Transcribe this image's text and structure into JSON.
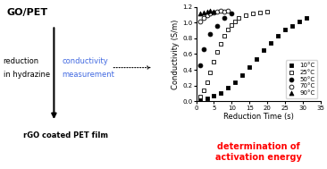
{
  "chart_data": {
    "type": "scatter",
    "xlabel": "Reduction Time (s)",
    "ylabel": "Conductivity (S/m)",
    "xlim": [
      0,
      35
    ],
    "xticks": [
      0,
      5,
      10,
      15,
      20,
      25,
      30,
      35
    ],
    "ylim": [
      0.0,
      1.2
    ],
    "yticks": [
      0.0,
      0.2,
      0.4,
      0.6,
      0.8,
      1.0,
      1.2
    ],
    "legend": "lower right",
    "series": [
      {
        "name": "10°C",
        "marker": "square",
        "color": "#000000",
        "x": [
          1,
          3,
          5,
          7,
          9,
          11,
          13,
          15,
          17,
          19,
          21,
          23,
          25,
          27,
          29,
          31
        ],
        "values": [
          0.02,
          0.04,
          0.07,
          0.11,
          0.17,
          0.24,
          0.33,
          0.43,
          0.54,
          0.65,
          0.74,
          0.83,
          0.91,
          0.96,
          1.01,
          1.06
        ]
      },
      {
        "name": "25°C",
        "marker": "square",
        "color": "#ffffff",
        "x": [
          1,
          2,
          3,
          4,
          5,
          6,
          7,
          8,
          9,
          10,
          11,
          12,
          14,
          16,
          18,
          20
        ],
        "values": [
          0.06,
          0.14,
          0.24,
          0.37,
          0.5,
          0.63,
          0.73,
          0.83,
          0.91,
          0.97,
          1.01,
          1.06,
          1.09,
          1.11,
          1.13,
          1.14
        ]
      },
      {
        "name": "50°C",
        "marker": "circle",
        "color": "#000000",
        "x": [
          1,
          2,
          4,
          6,
          8,
          10
        ],
        "values": [
          0.46,
          0.66,
          0.86,
          0.96,
          1.06,
          1.11
        ]
      },
      {
        "name": "70°C",
        "marker": "circle",
        "color": "#ffffff",
        "x": [
          1,
          2,
          3,
          4,
          5,
          6,
          7,
          8,
          9
        ],
        "values": [
          1.01,
          1.06,
          1.09,
          1.11,
          1.13,
          1.14,
          1.15,
          1.14,
          1.15
        ]
      },
      {
        "name": "90°C",
        "marker": "triangle",
        "color": "#000000",
        "x": [
          1,
          2,
          3,
          4,
          5
        ],
        "values": [
          1.11,
          1.13,
          1.14,
          1.15,
          1.14
        ]
      }
    ],
    "annotations": [
      {
        "text": "GO/PET"
      },
      {
        "text": "reduction"
      },
      {
        "text": "in hydrazine"
      },
      {
        "text": "conductivity",
        "color": "#4169E1"
      },
      {
        "text": "measurement",
        "color": "#4169E1"
      },
      {
        "text": "rGO coated PET film"
      },
      {
        "text": "determination of\nactivation energy",
        "color": "#ff0000"
      }
    ]
  }
}
